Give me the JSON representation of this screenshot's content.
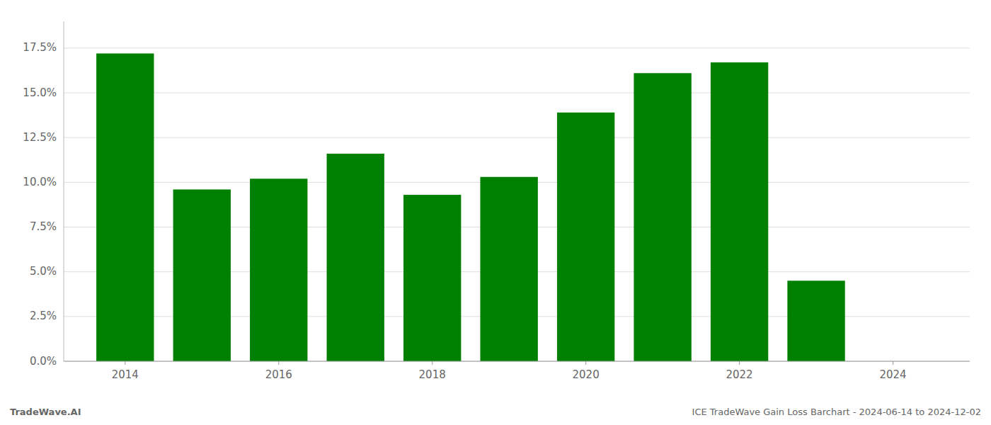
{
  "chart_data": {
    "type": "bar",
    "title": "TradeWave.AI",
    "subtitle": "ICE TradeWave Gain Loss Barchart - 2024-06-14 to 2024-12-02",
    "x": [
      2014,
      2015,
      2016,
      2017,
      2018,
      2019,
      2020,
      2021,
      2022,
      2023
    ],
    "values": [
      0.172,
      0.096,
      0.102,
      0.116,
      0.093,
      0.103,
      0.139,
      0.161,
      0.167,
      0.045
    ],
    "color": "#008000",
    "xlim": [
      2013.2,
      2025.0
    ],
    "xticks": [
      2014,
      2016,
      2018,
      2020,
      2022,
      2024
    ],
    "ylim": [
      0,
      0.19
    ],
    "yticks": [
      {
        "value": 0.0,
        "label": "0.0%"
      },
      {
        "value": 0.025,
        "label": "2.5%"
      },
      {
        "value": 0.05,
        "label": "5.0%"
      },
      {
        "value": 0.075,
        "label": "7.5%"
      },
      {
        "value": 0.1,
        "label": "10.0%"
      },
      {
        "value": 0.125,
        "label": "12.5%"
      },
      {
        "value": 0.15,
        "label": "15.0%"
      },
      {
        "value": 0.175,
        "label": "17.5%"
      }
    ],
    "grid": true
  }
}
